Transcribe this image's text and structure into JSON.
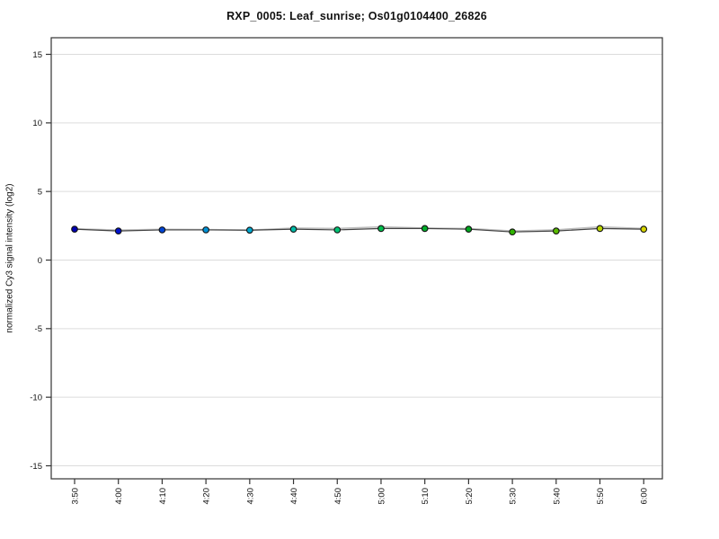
{
  "header": {
    "title": "RXP_0005: Leaf_sunrise; Os01g0104400_26826"
  },
  "chart_data": {
    "type": "line",
    "title": "RXP_0005: Leaf_sunrise; Os01g0104400_26826",
    "xlabel": "",
    "ylabel": "normalized Cy3 signal intensity (log2)",
    "categories": [
      "3:50",
      "4:00",
      "4:10",
      "4:20",
      "4:30",
      "4:40",
      "4:50",
      "5:00",
      "5:10",
      "5:20",
      "5:30",
      "5:40",
      "5:50",
      "6:00"
    ],
    "y_ticks": [
      -15,
      -10,
      -5,
      0,
      5,
      10,
      15
    ],
    "ylim": [
      -16.2,
      16.2
    ],
    "grid": "horizontal-only",
    "legend_position": "none",
    "series": [
      {
        "name": "replicate-trace",
        "line_color": "#bbbbbb",
        "marker": "none",
        "values": [
          2.28,
          2.18,
          2.24,
          2.22,
          2.18,
          2.33,
          2.3,
          2.42,
          2.33,
          2.3,
          2.12,
          2.2,
          2.42,
          2.3
        ]
      },
      {
        "name": "mean-signal",
        "line_color": "#444444",
        "marker": "circle-black-outline",
        "values": [
          2.25,
          2.12,
          2.2,
          2.2,
          2.18,
          2.25,
          2.2,
          2.3,
          2.3,
          2.25,
          2.05,
          2.12,
          2.3,
          2.25
        ],
        "marker_colors": [
          "#0000b3",
          "#0011cc",
          "#0044d4",
          "#0092d6",
          "#00a9d0",
          "#00bba8",
          "#00c375",
          "#00bf4e",
          "#00ad2a",
          "#00a820",
          "#2fb300",
          "#5abb00",
          "#b9d400",
          "#d6d400"
        ]
      }
    ]
  },
  "colors": {
    "background": "#ffffff",
    "axis_frame": "#333333",
    "tick_text": "#111111",
    "gridline": "#dcdcdc"
  }
}
